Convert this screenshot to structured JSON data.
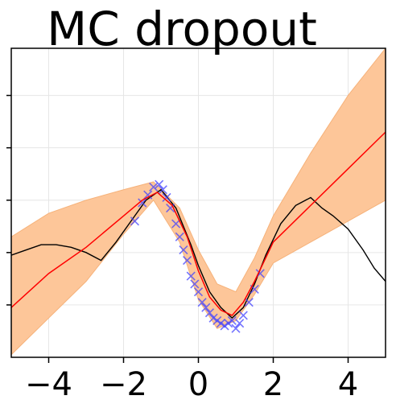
{
  "chart_data": {
    "type": "line",
    "title": "MC dropout",
    "xlabel": "",
    "ylabel": "",
    "xlim": [
      -5,
      5
    ],
    "ylim": [
      -2.0,
      3.9
    ],
    "grid": true,
    "legend": "none",
    "x_ticks": [
      -4,
      -2,
      0,
      2,
      4
    ],
    "x_tick_labels": [
      "−4",
      "−2",
      "0",
      "2",
      "4"
    ],
    "y_ticks": [
      -1,
      0,
      1,
      2,
      3
    ],
    "colors": {
      "band": "#fdc699",
      "band_edge": "#f6b27a",
      "mean": "#ff0000",
      "truth": "#000000",
      "points": "#4444ff"
    },
    "series": [
      {
        "kind": "band",
        "x": [
          -5,
          -4,
          -3,
          -2,
          -1.2,
          -0.5,
          0,
          0.5,
          1,
          1.5,
          2,
          3,
          4,
          5
        ],
        "lower": [
          -1.95,
          -1.25,
          -0.55,
          0.35,
          1.0,
          0.2,
          -0.9,
          -1.45,
          -1.3,
          -0.8,
          -0.2,
          0.2,
          0.6,
          1.0
        ],
        "upper": [
          0.3,
          0.75,
          1.0,
          1.2,
          1.35,
          0.85,
          0.05,
          -0.6,
          -0.75,
          -0.1,
          0.7,
          1.9,
          3.0,
          3.9
        ]
      },
      {
        "kind": "line",
        "x": [
          -5,
          -4,
          -3,
          -2,
          -1.5,
          -1.1,
          -0.7,
          -0.3,
          0,
          0.3,
          0.6,
          0.9,
          1.2,
          1.5,
          2,
          3,
          4,
          5
        ],
        "y": [
          -1.05,
          -0.4,
          0.1,
          0.7,
          1.0,
          1.15,
          0.9,
          0.3,
          -0.35,
          -0.85,
          -1.1,
          -1.2,
          -0.95,
          -0.55,
          0.2,
          0.9,
          1.6,
          2.3
        ]
      },
      {
        "kind": "line",
        "x": [
          -5,
          -4.6,
          -4.2,
          -3.8,
          -3.4,
          -3.0,
          -2.6,
          -2.2,
          -1.8,
          -1.4,
          -1.0,
          -0.6,
          -0.2,
          0,
          0.3,
          0.6,
          0.9,
          1.2,
          1.5,
          1.8,
          2.2,
          2.6,
          3.0,
          3.3,
          3.6,
          4.0,
          4.4,
          4.7,
          5.0
        ],
        "y": [
          -0.05,
          0.05,
          0.15,
          0.15,
          0.1,
          0.0,
          -0.15,
          0.2,
          0.6,
          1.0,
          1.2,
          0.85,
          0.15,
          -0.25,
          -0.75,
          -1.05,
          -1.25,
          -1.05,
          -0.6,
          -0.05,
          0.55,
          0.9,
          1.05,
          0.85,
          0.7,
          0.45,
          0.05,
          -0.3,
          -0.55
        ]
      },
      {
        "kind": "scatter",
        "x": [
          -1.7,
          -1.5,
          -1.35,
          -1.2,
          -1.05,
          -0.95,
          -0.85,
          -0.75,
          -0.6,
          -0.5,
          -0.4,
          -0.3,
          -0.2,
          -0.1,
          0.0,
          0.1,
          0.2,
          0.3,
          0.4,
          0.5,
          0.6,
          0.7,
          0.8,
          0.9,
          1.0,
          1.1,
          1.2,
          1.35,
          1.5,
          1.65
        ],
        "y": [
          0.6,
          0.95,
          1.1,
          1.25,
          1.3,
          1.2,
          1.05,
          0.85,
          0.55,
          0.3,
          0.05,
          -0.15,
          -0.45,
          -0.6,
          -0.75,
          -0.95,
          -1.05,
          -1.15,
          -1.25,
          -1.3,
          -1.35,
          -1.4,
          -1.35,
          -1.3,
          -1.45,
          -1.35,
          -1.2,
          -0.95,
          -0.7,
          -0.4
        ]
      }
    ]
  }
}
